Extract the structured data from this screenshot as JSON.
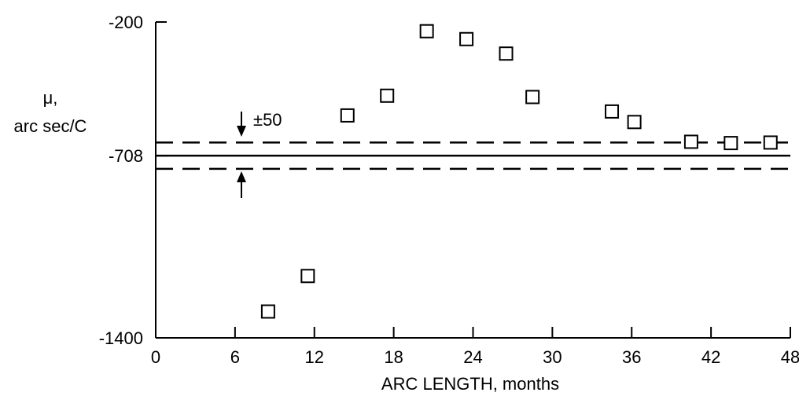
{
  "chart_data": {
    "type": "scatter",
    "xlabel": "ARC LENGTH,  months",
    "ylabel_line1": "μ,",
    "ylabel_line2": "arc sec/C",
    "xlim": [
      0,
      48
    ],
    "ylim": [
      -1400,
      -200
    ],
    "x_ticks": [
      0,
      6,
      12,
      18,
      24,
      30,
      36,
      42,
      48
    ],
    "x_tick_labels": [
      "0",
      "6",
      "12",
      "18",
      "24",
      "30",
      "36",
      "42",
      "48"
    ],
    "y_tick_labels": [
      {
        "value": -200,
        "label": "-200"
      },
      {
        "value": -708,
        "label": "-708"
      },
      {
        "value": -1400,
        "label": "-1400"
      }
    ],
    "reference_line": {
      "value": -708,
      "style": "solid"
    },
    "band": {
      "lower": -758,
      "upper": -658,
      "style": "dashed",
      "label": "±50"
    },
    "points": [
      {
        "x": 8.5,
        "y": -1300
      },
      {
        "x": 11.5,
        "y": -1165
      },
      {
        "x": 14.5,
        "y": -555
      },
      {
        "x": 17.5,
        "y": -480
      },
      {
        "x": 20.5,
        "y": -235
      },
      {
        "x": 23.5,
        "y": -265
      },
      {
        "x": 26.5,
        "y": -320
      },
      {
        "x": 28.5,
        "y": -485
      },
      {
        "x": 34.5,
        "y": -540
      },
      {
        "x": 36.2,
        "y": -580
      },
      {
        "x": 40.5,
        "y": -655
      },
      {
        "x": 43.5,
        "y": -660
      },
      {
        "x": 46.5,
        "y": -658
      }
    ]
  }
}
